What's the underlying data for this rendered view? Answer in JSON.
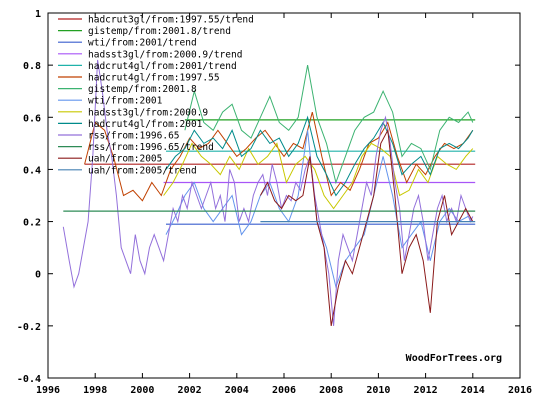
{
  "chart_data": {
    "type": "line",
    "title": "",
    "xlabel": "",
    "ylabel": "",
    "xlim": [
      1996,
      2016
    ],
    "ylim": [
      -0.4,
      1.0
    ],
    "x_ticks": [
      1996,
      1998,
      2000,
      2002,
      2004,
      2006,
      2008,
      2010,
      2012,
      2014,
      2016
    ],
    "y_ticks": [
      -0.4,
      -0.2,
      0,
      0.2,
      0.4,
      0.6,
      0.8,
      1
    ],
    "x_tick_labels": [
      "1996",
      "1998",
      "2000",
      "2002",
      "2004",
      "2006",
      "2008",
      "2010",
      "2012",
      "2014",
      "2016"
    ],
    "y_tick_labels": [
      "-0.4",
      "-0.2",
      "0",
      "0.2",
      "0.4",
      "0.6",
      "0.8",
      "1"
    ],
    "grid": false,
    "legend_position": "top-left",
    "credit": "WoodForTrees.org",
    "series": [
      {
        "name": "hadcrut3gl/from:1997.55/trend",
        "color": "#b22222",
        "kind": "trend",
        "x": [
          1997.55,
          2014.1
        ],
        "y": [
          0.42,
          0.42
        ]
      },
      {
        "name": "gistemp/from:2001.8/trend",
        "color": "#22a022",
        "kind": "trend",
        "x": [
          2001.8,
          2014.1
        ],
        "y": [
          0.59,
          0.59
        ]
      },
      {
        "name": "wti/from:2001/trend",
        "color": "#3a5fcd",
        "kind": "trend",
        "x": [
          2001.0,
          2014.1
        ],
        "y": [
          0.19,
          0.19
        ]
      },
      {
        "name": "hadsst3gl/from:2000.9/trend",
        "color": "#a855f7",
        "kind": "trend",
        "x": [
          2000.9,
          2014.1
        ],
        "y": [
          0.35,
          0.35
        ]
      },
      {
        "name": "hadcrut4gl/from:2001/trend",
        "color": "#20b2aa",
        "kind": "trend",
        "x": [
          2001.0,
          2014.1
        ],
        "y": [
          0.47,
          0.47
        ]
      },
      {
        "name": "hadcrut4gl/from:1997.55",
        "color": "#c04000",
        "kind": "data",
        "x": [
          1997.55,
          1998.0,
          1998.4,
          1998.8,
          1999.2,
          1999.6,
          2000.0,
          2000.4,
          2000.8,
          2001.2,
          2001.6,
          2002.0,
          2002.4,
          2002.8,
          2003.2,
          2003.6,
          2004.0,
          2004.4,
          2004.8,
          2005.2,
          2005.6,
          2006.0,
          2006.4,
          2006.8,
          2007.2,
          2007.6,
          2008.0,
          2008.4,
          2008.8,
          2009.2,
          2009.6,
          2010.0,
          2010.4,
          2010.8,
          2011.2,
          2011.6,
          2012.0,
          2012.4,
          2012.8,
          2013.2,
          2013.6,
          2014.0
        ],
        "y": [
          0.42,
          0.58,
          0.55,
          0.44,
          0.3,
          0.32,
          0.28,
          0.35,
          0.3,
          0.4,
          0.45,
          0.52,
          0.48,
          0.5,
          0.55,
          0.5,
          0.45,
          0.48,
          0.52,
          0.55,
          0.5,
          0.45,
          0.5,
          0.48,
          0.62,
          0.45,
          0.3,
          0.35,
          0.32,
          0.4,
          0.5,
          0.52,
          0.58,
          0.45,
          0.35,
          0.42,
          0.38,
          0.45,
          0.5,
          0.48,
          0.5,
          0.55
        ]
      },
      {
        "name": "gistemp/from:2001.8",
        "color": "#3cb371",
        "kind": "data",
        "x": [
          2001.8,
          2002.2,
          2002.6,
          2003.0,
          2003.4,
          2003.8,
          2004.2,
          2004.6,
          2005.0,
          2005.4,
          2005.8,
          2006.2,
          2006.6,
          2007.0,
          2007.4,
          2007.8,
          2008.2,
          2008.6,
          2009.0,
          2009.4,
          2009.8,
          2010.2,
          2010.6,
          2011.0,
          2011.4,
          2011.8,
          2012.2,
          2012.6,
          2013.0,
          2013.4,
          2013.8,
          2014.0
        ],
        "y": [
          0.55,
          0.7,
          0.58,
          0.55,
          0.62,
          0.65,
          0.55,
          0.52,
          0.6,
          0.68,
          0.58,
          0.55,
          0.6,
          0.8,
          0.6,
          0.5,
          0.35,
          0.45,
          0.55,
          0.6,
          0.62,
          0.7,
          0.62,
          0.45,
          0.5,
          0.48,
          0.4,
          0.55,
          0.6,
          0.58,
          0.62,
          0.58
        ]
      },
      {
        "name": "wti/from:2001",
        "color": "#6495ed",
        "kind": "data",
        "x": [
          2001.0,
          2001.4,
          2001.8,
          2002.2,
          2002.6,
          2003.0,
          2003.4,
          2003.8,
          2004.2,
          2004.6,
          2005.0,
          2005.4,
          2005.8,
          2006.2,
          2006.6,
          2007.0,
          2007.4,
          2007.8,
          2008.2,
          2008.6,
          2009.0,
          2009.4,
          2009.8,
          2010.2,
          2010.6,
          2011.0,
          2011.4,
          2011.8,
          2012.2,
          2012.6,
          2013.0,
          2013.4,
          2013.8,
          2014.0
        ],
        "y": [
          0.15,
          0.22,
          0.3,
          0.35,
          0.25,
          0.2,
          0.25,
          0.3,
          0.15,
          0.2,
          0.3,
          0.35,
          0.25,
          0.2,
          0.3,
          0.55,
          0.2,
          0.1,
          -0.05,
          0.05,
          0.1,
          0.15,
          0.3,
          0.45,
          0.3,
          0.1,
          0.15,
          0.2,
          0.05,
          0.2,
          0.25,
          0.2,
          0.22,
          0.2
        ]
      },
      {
        "name": "hadsst3gl/from:2000.9",
        "color": "#c8c800",
        "kind": "data",
        "x": [
          2000.9,
          2001.3,
          2001.7,
          2002.1,
          2002.5,
          2002.9,
          2003.3,
          2003.7,
          2004.1,
          2004.5,
          2004.9,
          2005.3,
          2005.7,
          2006.1,
          2006.5,
          2006.9,
          2007.3,
          2007.7,
          2008.1,
          2008.5,
          2008.9,
          2009.3,
          2009.7,
          2010.1,
          2010.5,
          2010.9,
          2011.3,
          2011.7,
          2012.1,
          2012.5,
          2012.9,
          2013.3,
          2013.7,
          2014.0
        ],
        "y": [
          0.3,
          0.35,
          0.42,
          0.5,
          0.45,
          0.42,
          0.38,
          0.45,
          0.4,
          0.48,
          0.42,
          0.45,
          0.5,
          0.35,
          0.42,
          0.45,
          0.4,
          0.3,
          0.25,
          0.3,
          0.35,
          0.45,
          0.5,
          0.48,
          0.45,
          0.3,
          0.32,
          0.4,
          0.35,
          0.45,
          0.42,
          0.4,
          0.45,
          0.48
        ]
      },
      {
        "name": "hadcrut4gl/from:2001",
        "color": "#008b8b",
        "kind": "data",
        "x": [
          2001.0,
          2001.4,
          2001.8,
          2002.2,
          2002.6,
          2003.0,
          2003.4,
          2003.8,
          2004.2,
          2004.6,
          2005.0,
          2005.4,
          2005.8,
          2006.2,
          2006.6,
          2007.0,
          2007.4,
          2007.8,
          2008.2,
          2008.6,
          2009.0,
          2009.4,
          2009.8,
          2010.2,
          2010.6,
          2011.0,
          2011.4,
          2011.8,
          2012.2,
          2012.6,
          2013.0,
          2013.4,
          2013.8,
          2014.0
        ],
        "y": [
          0.4,
          0.45,
          0.48,
          0.55,
          0.5,
          0.52,
          0.48,
          0.55,
          0.45,
          0.48,
          0.55,
          0.5,
          0.52,
          0.45,
          0.5,
          0.6,
          0.45,
          0.38,
          0.3,
          0.35,
          0.42,
          0.48,
          0.52,
          0.58,
          0.5,
          0.38,
          0.42,
          0.45,
          0.38,
          0.48,
          0.5,
          0.48,
          0.52,
          0.55
        ]
      },
      {
        "name": "rss/from:1996.65",
        "color": "#9370db",
        "kind": "data",
        "x": [
          1996.65,
          1996.9,
          1997.1,
          1997.3,
          1997.5,
          1997.7,
          1997.9,
          1998.1,
          1998.3,
          1998.5,
          1998.7,
          1998.9,
          1999.1,
          1999.3,
          1999.5,
          1999.7,
          1999.9,
          2000.1,
          2000.3,
          2000.5,
          2000.7,
          2000.9,
          2001.1,
          2001.3,
          2001.5,
          2001.7,
          2001.9,
          2002.1,
          2002.3,
          2002.5,
          2002.7,
          2002.9,
          2003.1,
          2003.3,
          2003.5,
          2003.7,
          2003.9,
          2004.1,
          2004.3,
          2004.5,
          2004.7,
          2004.9,
          2005.1,
          2005.3,
          2005.5,
          2005.7,
          2005.9,
          2006.1,
          2006.3,
          2006.5,
          2006.7,
          2006.9,
          2007.1,
          2007.3,
          2007.5,
          2007.7,
          2007.9,
          2008.1,
          2008.3,
          2008.5,
          2008.7,
          2008.9,
          2009.1,
          2009.3,
          2009.5,
          2009.7,
          2009.9,
          2010.1,
          2010.3,
          2010.5,
          2010.7,
          2010.9,
          2011.1,
          2011.3,
          2011.5,
          2011.7,
          2011.9,
          2012.1,
          2012.3,
          2012.5,
          2012.7,
          2012.9,
          2013.1,
          2013.3,
          2013.5,
          2013.7,
          2013.9,
          2014.0
        ],
        "y": [
          0.18,
          0.05,
          -0.05,
          0.0,
          0.1,
          0.2,
          0.45,
          0.82,
          0.7,
          0.55,
          0.45,
          0.3,
          0.1,
          0.05,
          0.0,
          0.15,
          0.05,
          0.0,
          0.1,
          0.15,
          0.1,
          0.05,
          0.15,
          0.25,
          0.2,
          0.3,
          0.25,
          0.35,
          0.3,
          0.25,
          0.3,
          0.35,
          0.25,
          0.3,
          0.2,
          0.4,
          0.35,
          0.2,
          0.25,
          0.2,
          0.3,
          0.35,
          0.38,
          0.3,
          0.42,
          0.35,
          0.25,
          0.3,
          0.28,
          0.35,
          0.32,
          0.4,
          0.45,
          0.3,
          0.2,
          0.1,
          0.0,
          -0.2,
          0.05,
          0.15,
          0.1,
          0.05,
          0.15,
          0.25,
          0.35,
          0.3,
          0.45,
          0.55,
          0.6,
          0.5,
          0.35,
          0.25,
          0.05,
          0.15,
          0.25,
          0.3,
          0.2,
          0.05,
          0.15,
          0.25,
          0.3,
          0.2,
          0.25,
          0.2,
          0.3,
          0.25,
          0.2,
          0.22
        ]
      },
      {
        "name": "rss/from:1996.65/trend",
        "color": "#2e8b57",
        "kind": "trend",
        "x": [
          1996.65,
          2014.1
        ],
        "y": [
          0.24,
          0.24
        ]
      },
      {
        "name": "uah/from:2005",
        "color": "#8b1a1a",
        "kind": "data",
        "x": [
          2005.0,
          2005.3,
          2005.6,
          2005.9,
          2006.2,
          2006.5,
          2006.8,
          2007.1,
          2007.4,
          2007.7,
          2008.0,
          2008.3,
          2008.6,
          2008.9,
          2009.2,
          2009.5,
          2009.8,
          2010.1,
          2010.4,
          2010.7,
          2011.0,
          2011.3,
          2011.6,
          2011.9,
          2012.2,
          2012.5,
          2012.8,
          2013.1,
          2013.4,
          2013.7,
          2014.0
        ],
        "y": [
          0.3,
          0.35,
          0.28,
          0.25,
          0.3,
          0.28,
          0.3,
          0.45,
          0.2,
          0.1,
          -0.2,
          -0.05,
          0.05,
          0.0,
          0.1,
          0.2,
          0.3,
          0.5,
          0.55,
          0.3,
          0.0,
          0.1,
          0.15,
          0.05,
          -0.15,
          0.2,
          0.3,
          0.15,
          0.2,
          0.25,
          0.2
        ]
      },
      {
        "name": "uah/from:2005/trend",
        "color": "#4682b4",
        "kind": "trend",
        "x": [
          2005.0,
          2014.1
        ],
        "y": [
          0.2,
          0.2
        ]
      }
    ]
  }
}
